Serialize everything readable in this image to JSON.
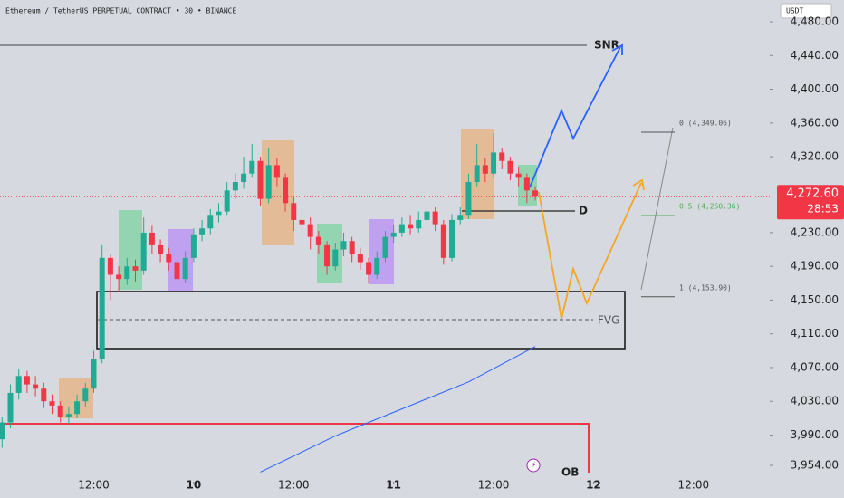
{
  "chart_data": {
    "type": "candlestick",
    "title": "Ethereum / TetherUS PERPETUAL CONTRACT • 30 • BINANCE",
    "currency": "USDT",
    "up_color": "#22ab94",
    "down_color": "#f23645",
    "x": [
      0,
      1,
      2,
      3,
      4,
      5,
      6,
      7,
      8,
      9,
      10,
      11,
      12,
      13,
      14,
      15,
      16,
      17,
      18,
      19,
      20,
      21,
      22,
      23,
      24,
      25,
      26,
      27,
      28,
      29,
      30,
      31,
      32,
      33,
      34,
      35,
      36,
      37,
      38,
      39,
      40,
      41,
      42,
      43,
      44,
      45,
      46,
      47,
      48,
      49,
      50,
      51,
      52,
      53,
      54,
      55,
      56,
      57,
      58,
      59,
      60,
      61,
      62,
      63,
      64
    ],
    "candles": [
      [
        3985,
        4012,
        3975,
        4005
      ],
      [
        4005,
        4050,
        3998,
        4040
      ],
      [
        4040,
        4068,
        4032,
        4060
      ],
      [
        4060,
        4066,
        4040,
        4050
      ],
      [
        4050,
        4060,
        4036,
        4045
      ],
      [
        4045,
        4052,
        4022,
        4030
      ],
      [
        4030,
        4038,
        4015,
        4025
      ],
      [
        4025,
        4030,
        4005,
        4012
      ],
      [
        4012,
        4024,
        4004,
        4015
      ],
      [
        4015,
        4038,
        4010,
        4030
      ],
      [
        4030,
        4052,
        4024,
        4045
      ],
      [
        4045,
        4090,
        4040,
        4080
      ],
      [
        4080,
        4215,
        4075,
        4200
      ],
      [
        4200,
        4205,
        4150,
        4180
      ],
      [
        4180,
        4190,
        4160,
        4175
      ],
      [
        4175,
        4200,
        4168,
        4190
      ],
      [
        4190,
        4198,
        4172,
        4185
      ],
      [
        4185,
        4248,
        4180,
        4230
      ],
      [
        4230,
        4238,
        4205,
        4215
      ],
      [
        4215,
        4222,
        4195,
        4205
      ],
      [
        4205,
        4212,
        4185,
        4195
      ],
      [
        4195,
        4200,
        4160,
        4175
      ],
      [
        4175,
        4208,
        4170,
        4200
      ],
      [
        4200,
        4235,
        4195,
        4228
      ],
      [
        4228,
        4245,
        4220,
        4235
      ],
      [
        4235,
        4258,
        4228,
        4250
      ],
      [
        4250,
        4265,
        4242,
        4255
      ],
      [
        4255,
        4290,
        4250,
        4280
      ],
      [
        4280,
        4300,
        4270,
        4290
      ],
      [
        4290,
        4320,
        4282,
        4300
      ],
      [
        4300,
        4335,
        4295,
        4315
      ],
      [
        4315,
        4320,
        4262,
        4270
      ],
      [
        4270,
        4330,
        4265,
        4310
      ],
      [
        4310,
        4318,
        4285,
        4295
      ],
      [
        4295,
        4300,
        4255,
        4265
      ],
      [
        4265,
        4272,
        4232,
        4245
      ],
      [
        4245,
        4255,
        4225,
        4240
      ],
      [
        4240,
        4248,
        4210,
        4225
      ],
      [
        4225,
        4232,
        4205,
        4215
      ],
      [
        4215,
        4220,
        4180,
        4190
      ],
      [
        4190,
        4218,
        4185,
        4210
      ],
      [
        4210,
        4230,
        4202,
        4220
      ],
      [
        4220,
        4225,
        4195,
        4205
      ],
      [
        4205,
        4212,
        4186,
        4195
      ],
      [
        4195,
        4200,
        4170,
        4180
      ],
      [
        4180,
        4208,
        4175,
        4200
      ],
      [
        4200,
        4232,
        4195,
        4225
      ],
      [
        4225,
        4240,
        4218,
        4230
      ],
      [
        4230,
        4248,
        4225,
        4240
      ],
      [
        4240,
        4250,
        4228,
        4235
      ],
      [
        4235,
        4255,
        4230,
        4245
      ],
      [
        4245,
        4262,
        4240,
        4255
      ],
      [
        4255,
        4260,
        4232,
        4240
      ],
      [
        4240,
        4245,
        4192,
        4200
      ],
      [
        4200,
        4252,
        4196,
        4245
      ],
      [
        4245,
        4260,
        4240,
        4250
      ],
      [
        4250,
        4300,
        4246,
        4290
      ],
      [
        4290,
        4335,
        4285,
        4310
      ],
      [
        4310,
        4318,
        4290,
        4300
      ],
      [
        4300,
        4348,
        4295,
        4325
      ],
      [
        4325,
        4330,
        4305,
        4315
      ],
      [
        4315,
        4320,
        4292,
        4300
      ],
      [
        4300,
        4308,
        4285,
        4295
      ],
      [
        4295,
        4300,
        4265,
        4280
      ],
      [
        4280,
        4285,
        4268,
        4272.6
      ]
    ],
    "ma": {
      "color": "#2962ff",
      "x": [
        31,
        40,
        48,
        56,
        64
      ],
      "values": [
        3946,
        3989,
        4021,
        4053,
        4095
      ]
    },
    "last_price": {
      "value": 4272.6,
      "label": "4,272.60"
    },
    "countdown": "28:53",
    "fib": [
      {
        "value": 4349.06,
        "label": "0 (4,349.06)",
        "color": "#555555"
      },
      {
        "value": 4250.36,
        "label": "0.5 (4,250.36)",
        "color": "#4caf50"
      },
      {
        "value": 4153.9,
        "label": "1 (4,153.90)",
        "color": "#555555"
      }
    ],
    "annotations": {
      "snr": "SNR",
      "d": "D",
      "fvg": "FVG",
      "ob": "OB"
    },
    "xlim": [
      -0.25,
      92.15
    ],
    "ylim": [
      3934.7,
      4505.8
    ],
    "xticks": [
      {
        "value": 11,
        "label": "12:00"
      },
      {
        "value": 23,
        "label": "10"
      },
      {
        "value": 35,
        "label": "12:00"
      },
      {
        "value": 47,
        "label": "11"
      },
      {
        "value": 59,
        "label": "12:00"
      },
      {
        "value": 71,
        "label": "12"
      },
      {
        "value": 83,
        "label": "12:00"
      }
    ],
    "yticks": [
      {
        "value": 4480,
        "label": "4,480.00"
      },
      {
        "value": 4440,
        "label": "4,440.00"
      },
      {
        "value": 4400,
        "label": "4,400.00"
      },
      {
        "value": 4360,
        "label": "4,360.00"
      },
      {
        "value": 4320,
        "label": "4,320.00"
      },
      {
        "value": 4230,
        "label": "4,230.00"
      },
      {
        "value": 4190,
        "label": "4,190.00"
      },
      {
        "value": 4150,
        "label": "4,150.00"
      },
      {
        "value": 4110,
        "label": "4,110.00"
      },
      {
        "value": 4070,
        "label": "4,070.00"
      },
      {
        "value": 4030,
        "label": "4,030.00"
      },
      {
        "value": 3990,
        "label": "3,990.00"
      },
      {
        "value": 3954,
        "label": "3,954.00"
      }
    ]
  }
}
